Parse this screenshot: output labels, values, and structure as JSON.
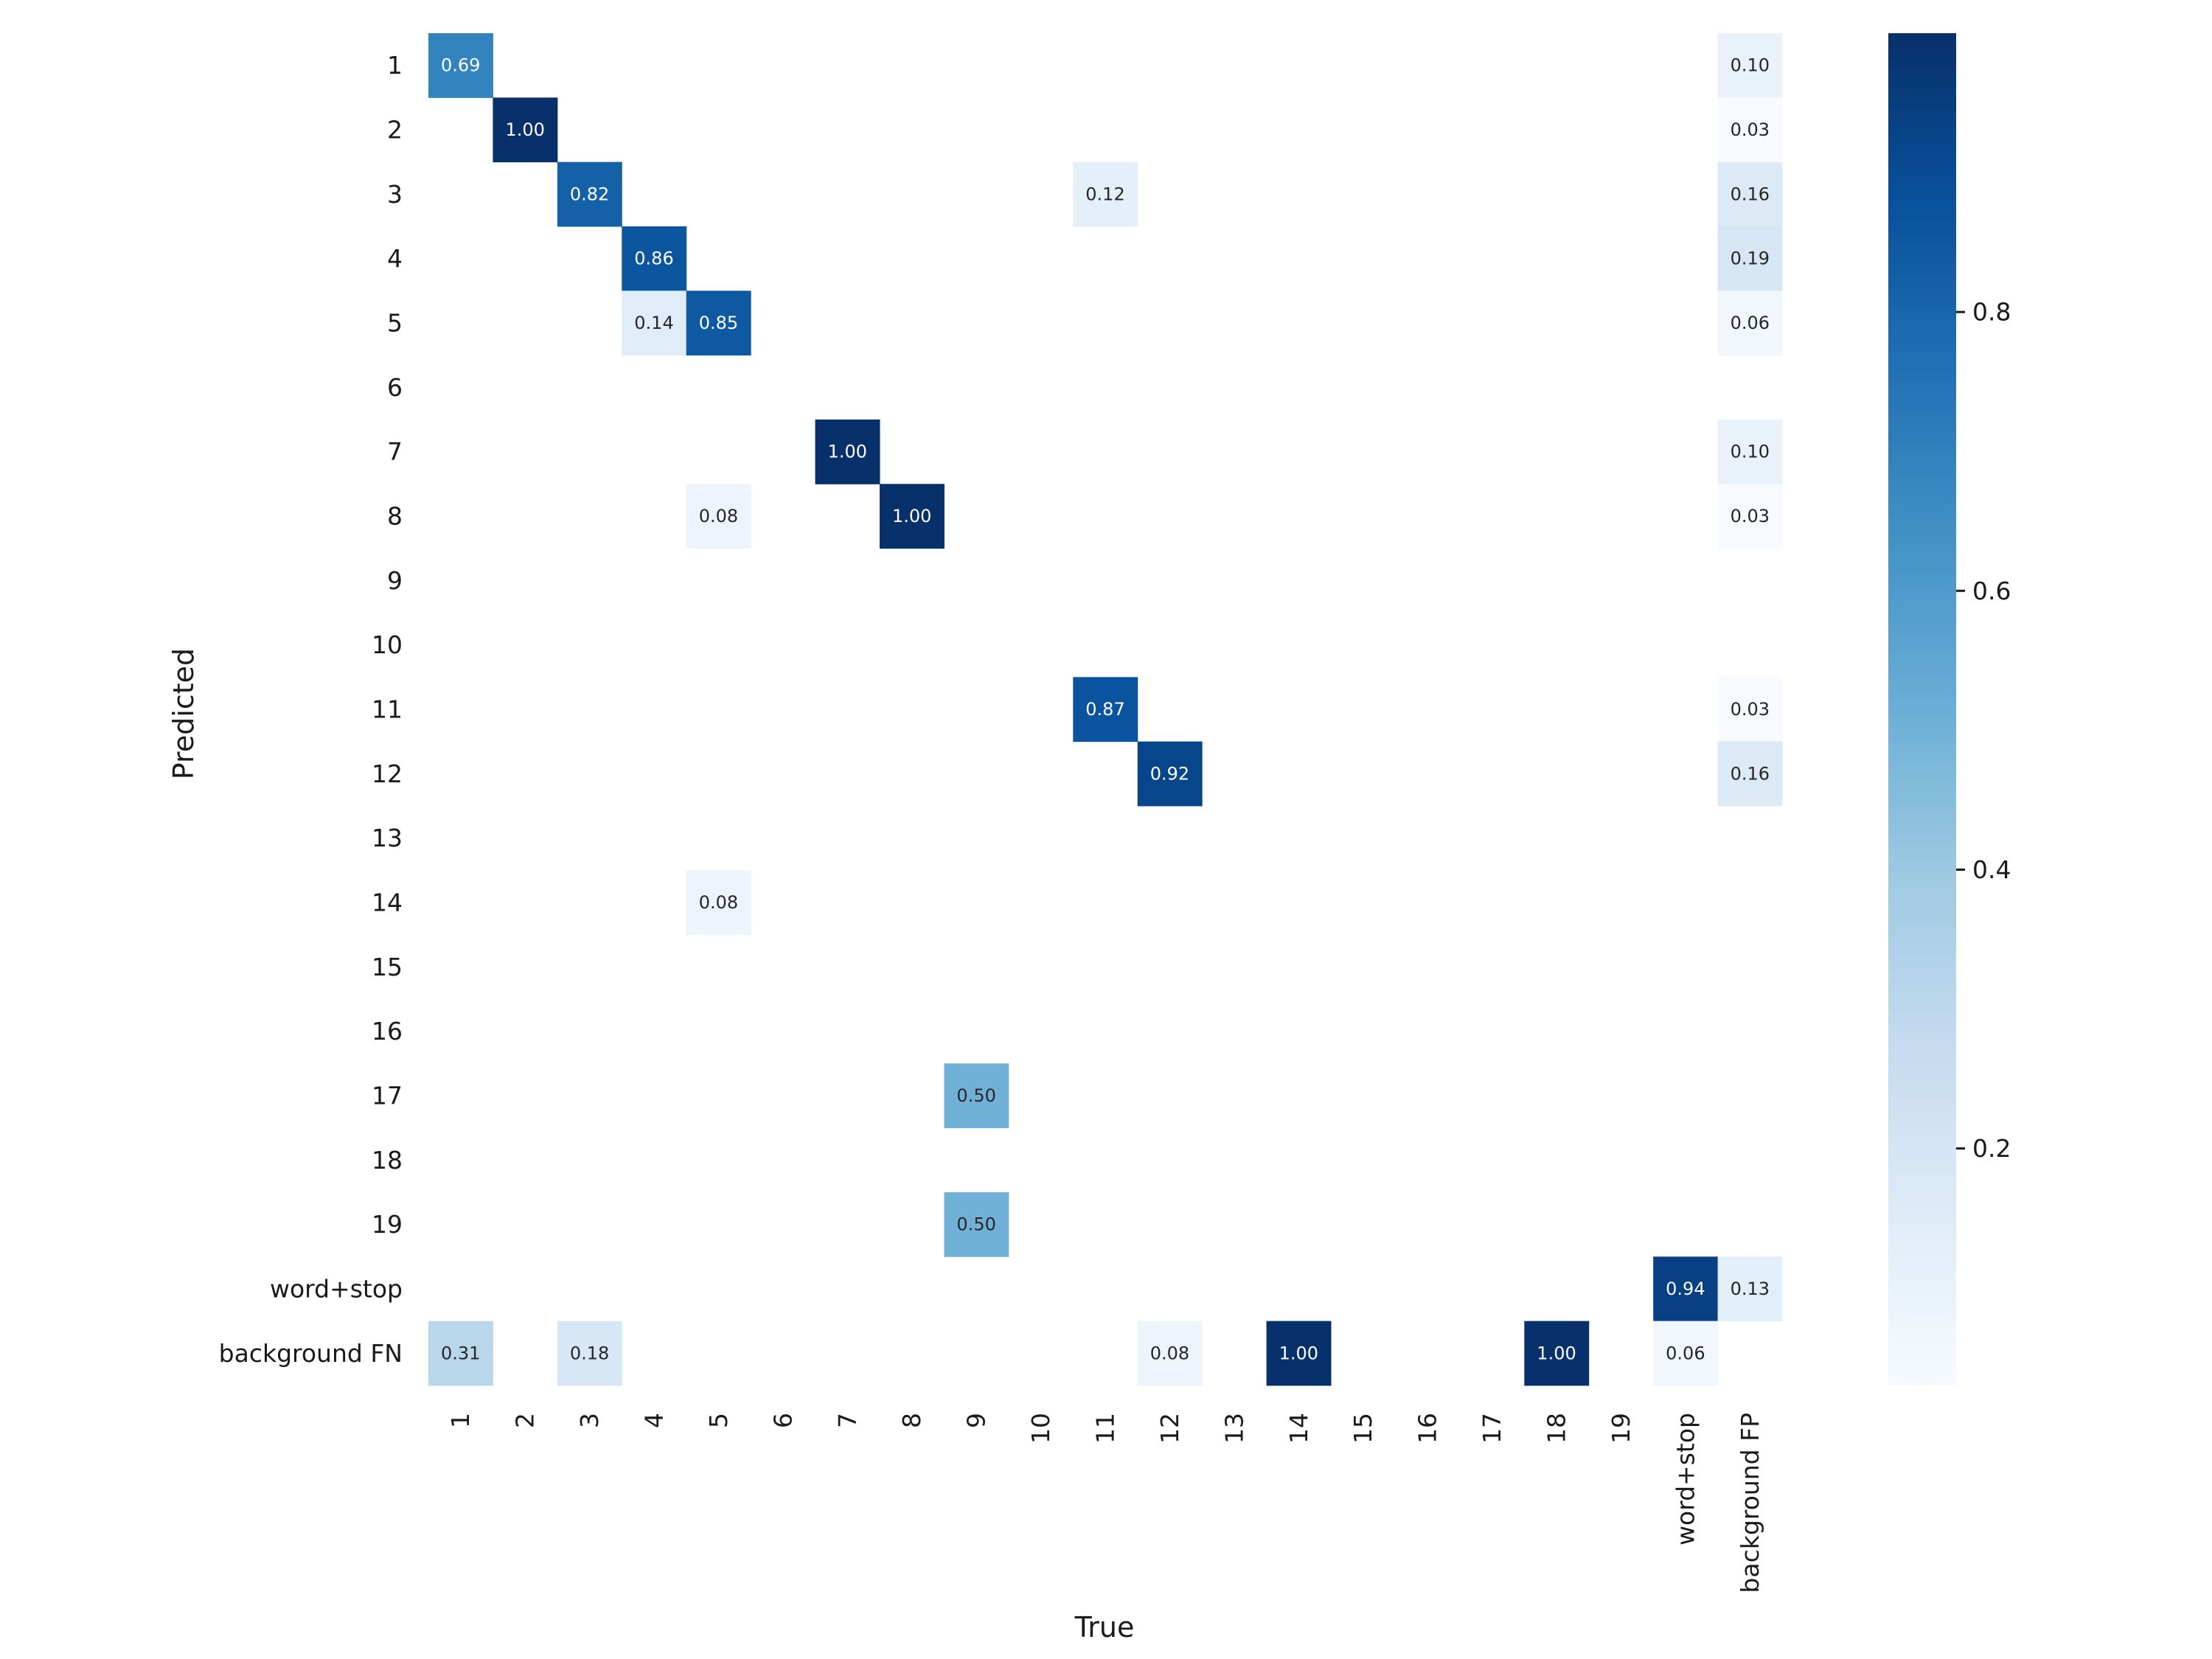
{
  "chart_data": {
    "type": "heatmap",
    "title": "",
    "xlabel": "True",
    "ylabel": "Predicted",
    "x_categories": [
      "1",
      "2",
      "3",
      "4",
      "5",
      "6",
      "7",
      "8",
      "9",
      "10",
      "11",
      "12",
      "13",
      "14",
      "15",
      "16",
      "17",
      "18",
      "19",
      "word+stop",
      "background FP"
    ],
    "y_categories": [
      "1",
      "2",
      "3",
      "4",
      "5",
      "6",
      "7",
      "8",
      "9",
      "10",
      "11",
      "12",
      "13",
      "14",
      "15",
      "16",
      "17",
      "18",
      "19",
      "word+stop",
      "background FN"
    ],
    "cells": [
      {
        "row": "1",
        "col": "1",
        "value": 0.69
      },
      {
        "row": "1",
        "col": "background FP",
        "value": 0.1
      },
      {
        "row": "2",
        "col": "2",
        "value": 1.0
      },
      {
        "row": "2",
        "col": "background FP",
        "value": 0.03
      },
      {
        "row": "3",
        "col": "3",
        "value": 0.82
      },
      {
        "row": "3",
        "col": "11",
        "value": 0.12
      },
      {
        "row": "3",
        "col": "background FP",
        "value": 0.16
      },
      {
        "row": "4",
        "col": "4",
        "value": 0.86
      },
      {
        "row": "4",
        "col": "background FP",
        "value": 0.19
      },
      {
        "row": "5",
        "col": "4",
        "value": 0.14
      },
      {
        "row": "5",
        "col": "5",
        "value": 0.85
      },
      {
        "row": "5",
        "col": "background FP",
        "value": 0.06
      },
      {
        "row": "7",
        "col": "7",
        "value": 1.0
      },
      {
        "row": "7",
        "col": "background FP",
        "value": 0.1
      },
      {
        "row": "8",
        "col": "5",
        "value": 0.08
      },
      {
        "row": "8",
        "col": "8",
        "value": 1.0
      },
      {
        "row": "8",
        "col": "background FP",
        "value": 0.03
      },
      {
        "row": "11",
        "col": "11",
        "value": 0.87
      },
      {
        "row": "11",
        "col": "background FP",
        "value": 0.03
      },
      {
        "row": "12",
        "col": "12",
        "value": 0.92
      },
      {
        "row": "12",
        "col": "background FP",
        "value": 0.16
      },
      {
        "row": "14",
        "col": "5",
        "value": 0.08
      },
      {
        "row": "17",
        "col": "9",
        "value": 0.5
      },
      {
        "row": "19",
        "col": "9",
        "value": 0.5
      },
      {
        "row": "word+stop",
        "col": "word+stop",
        "value": 0.94
      },
      {
        "row": "word+stop",
        "col": "background FP",
        "value": 0.13
      },
      {
        "row": "background FN",
        "col": "1",
        "value": 0.31
      },
      {
        "row": "background FN",
        "col": "3",
        "value": 0.18
      },
      {
        "row": "background FN",
        "col": "12",
        "value": 0.08
      },
      {
        "row": "background FN",
        "col": "14",
        "value": 1.0
      },
      {
        "row": "background FN",
        "col": "18",
        "value": 1.0
      },
      {
        "row": "background FN",
        "col": "word+stop",
        "value": 0.06
      }
    ],
    "value_format": "0.00",
    "colormap": "Blues",
    "colorbar": {
      "range": [
        0.03,
        1.0
      ],
      "ticks": [
        0.2,
        0.4,
        0.6,
        0.8
      ],
      "tick_labels": [
        "0.2",
        "0.4",
        "0.6",
        "0.8"
      ],
      "placement": "right"
    },
    "colors": {
      "low": "#f7fbff",
      "high": "#08306b",
      "text_light": "#ffffff",
      "text_dark": "#262626"
    },
    "grid": false,
    "legend": "colorbar-right"
  }
}
